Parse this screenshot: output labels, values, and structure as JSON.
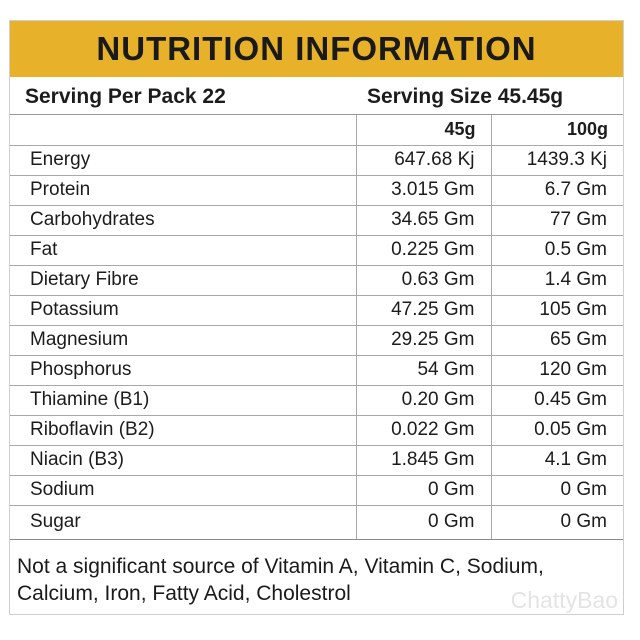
{
  "title": "NUTRITION INFORMATION",
  "serving": {
    "per_pack": "Serving Per Pack 22",
    "size": "Serving Size 45.45g"
  },
  "columns": [
    "",
    "45g",
    "100g"
  ],
  "rows": [
    {
      "name": "Energy",
      "v45": "647.68 Kj",
      "v100": "1439.3 Kj"
    },
    {
      "name": "Protein",
      "v45": "3.015 Gm",
      "v100": "6.7 Gm"
    },
    {
      "name": "Carbohydrates",
      "v45": "34.65 Gm",
      "v100": "77 Gm"
    },
    {
      "name": "Fat",
      "v45": "0.225 Gm",
      "v100": "0.5 Gm"
    },
    {
      "name": "Dietary Fibre",
      "v45": "0.63 Gm",
      "v100": "1.4 Gm"
    },
    {
      "name": "Potassium",
      "v45": "47.25 Gm",
      "v100": "105 Gm"
    },
    {
      "name": "Magnesium",
      "v45": "29.25 Gm",
      "v100": "65 Gm"
    },
    {
      "name": "Phosphorus",
      "v45": "54 Gm",
      "v100": "120 Gm"
    },
    {
      "name": "Thiamine (B1)",
      "v45": "0.20 Gm",
      "v100": "0.45 Gm"
    },
    {
      "name": "Riboflavin (B2)",
      "v45": "0.022 Gm",
      "v100": "0.05 Gm"
    },
    {
      "name": "Niacin (B3)",
      "v45": "1.845 Gm",
      "v100": "4.1 Gm"
    },
    {
      "name": "Sodium",
      "v45": "0 Gm",
      "v100": "0 Gm"
    },
    {
      "name": "Sugar",
      "v45": "0 Gm",
      "v100": "0 Gm"
    }
  ],
  "footnote": {
    "line1": "Not a significant source of Vitamin A, Vitamin C, Sodium,",
    "line2": "Calcium, Iron, Fatty Acid, Cholestrol"
  },
  "watermark": "ChattyBao",
  "colors": {
    "banner": "#e8b12a",
    "text": "#1c1c1c",
    "rule": "#a8a8a8"
  }
}
